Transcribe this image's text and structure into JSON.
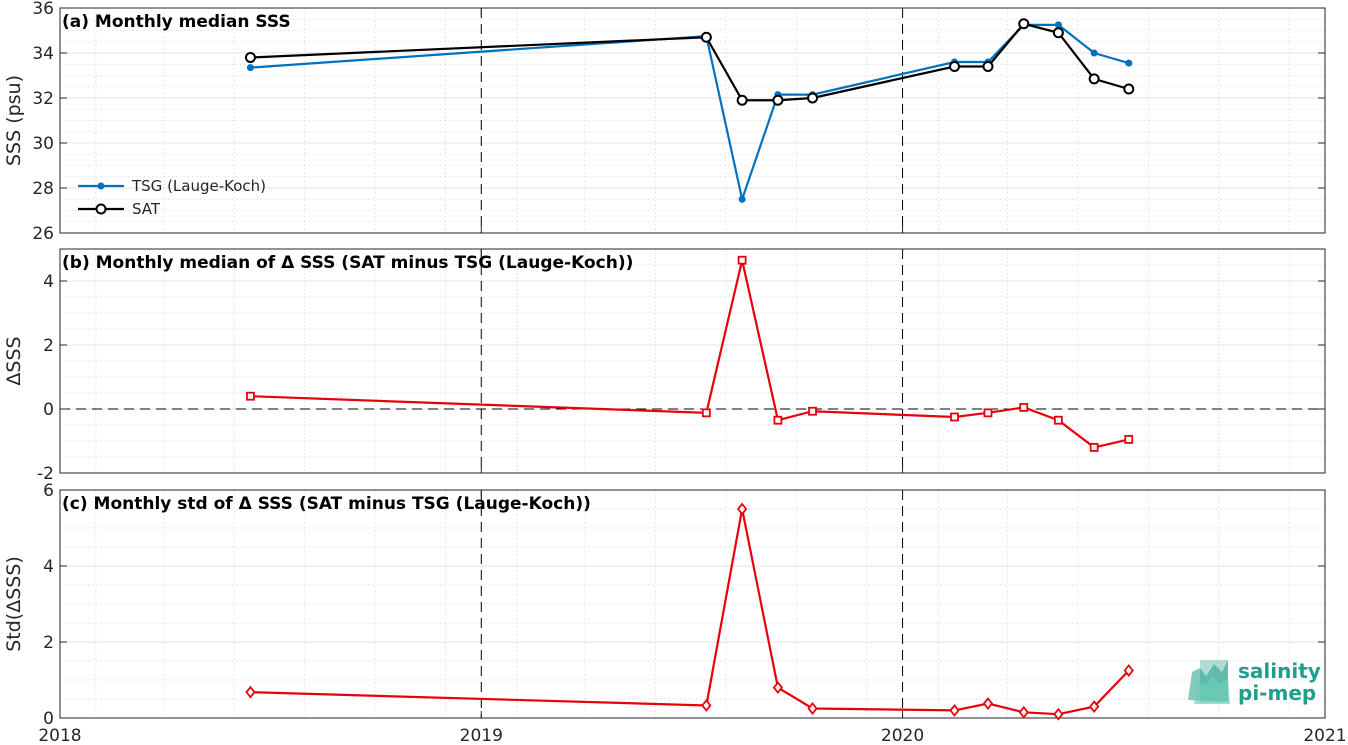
{
  "chart_data": [
    {
      "type": "line",
      "title": "(a) Monthly median SSS",
      "ylabel": "SSS (psu)",
      "ylim": [
        26,
        36
      ],
      "yticks": [
        26,
        28,
        30,
        32,
        34,
        36
      ],
      "grid": true,
      "legend_position": "middle-left",
      "series": [
        {
          "name": "TSG (Lauge-Koch)",
          "color": "#0072bd",
          "marker": "dot",
          "x": [
            "2018-06-15",
            "2019-07-15",
            "2019-08-15",
            "2019-09-15",
            "2019-10-15",
            "2020-02-15",
            "2020-03-15",
            "2020-04-15",
            "2020-05-15",
            "2020-06-15",
            "2020-07-15"
          ],
          "values": [
            33.35,
            34.75,
            27.5,
            32.15,
            32.15,
            33.6,
            33.6,
            35.25,
            35.25,
            34.0,
            33.55
          ]
        },
        {
          "name": "SAT",
          "color": "#000000",
          "marker": "circle",
          "x": [
            "2018-06-15",
            "2019-07-15",
            "2019-08-15",
            "2019-09-15",
            "2019-10-15",
            "2020-02-15",
            "2020-03-15",
            "2020-04-15",
            "2020-05-15",
            "2020-06-15",
            "2020-07-15"
          ],
          "values": [
            33.8,
            34.7,
            31.9,
            31.9,
            32.0,
            33.4,
            33.4,
            35.3,
            34.9,
            32.85,
            32.4
          ]
        }
      ]
    },
    {
      "type": "line",
      "title": "(b) Monthly median of Δ SSS (SAT minus TSG (Lauge-Koch))",
      "ylabel": "ΔSSS",
      "ylim": [
        -2,
        5
      ],
      "yticks": [
        -2,
        0,
        2,
        4
      ],
      "grid": true,
      "zero_line": true,
      "series": [
        {
          "color": "#e8000b",
          "marker": "square",
          "x": [
            "2018-06-15",
            "2019-07-15",
            "2019-08-15",
            "2019-09-15",
            "2019-10-15",
            "2020-02-15",
            "2020-03-15",
            "2020-04-15",
            "2020-05-15",
            "2020-06-15",
            "2020-07-15"
          ],
          "values": [
            0.4,
            -0.12,
            4.65,
            -0.35,
            -0.07,
            -0.25,
            -0.12,
            0.05,
            -0.35,
            -1.2,
            -0.95
          ]
        }
      ]
    },
    {
      "type": "line",
      "title": "(c) Monthly std of Δ SSS (SAT minus TSG (Lauge-Koch))",
      "ylabel": "Std(ΔSSS)",
      "ylim": [
        0,
        6
      ],
      "yticks": [
        0,
        2,
        4,
        6
      ],
      "grid": true,
      "series": [
        {
          "color": "#e8000b",
          "marker": "diamond",
          "x": [
            "2018-06-15",
            "2019-07-15",
            "2019-08-15",
            "2019-09-15",
            "2019-10-15",
            "2020-02-15",
            "2020-03-15",
            "2020-04-15",
            "2020-05-15",
            "2020-06-15",
            "2020-07-15"
          ],
          "values": [
            0.68,
            0.33,
            5.5,
            0.8,
            0.25,
            0.2,
            0.38,
            0.15,
            0.1,
            0.3,
            1.25
          ]
        }
      ]
    }
  ],
  "x_axis": {
    "xlim": [
      "2018-01-01",
      "2021-01-01"
    ],
    "tick_labels": [
      "2018",
      "2019",
      "2020",
      "2021"
    ],
    "year_lines": [
      "2019",
      "2020"
    ]
  },
  "logo": {
    "line1": "salinity",
    "line2": "pi-mep",
    "color": "#1f9e8a"
  }
}
